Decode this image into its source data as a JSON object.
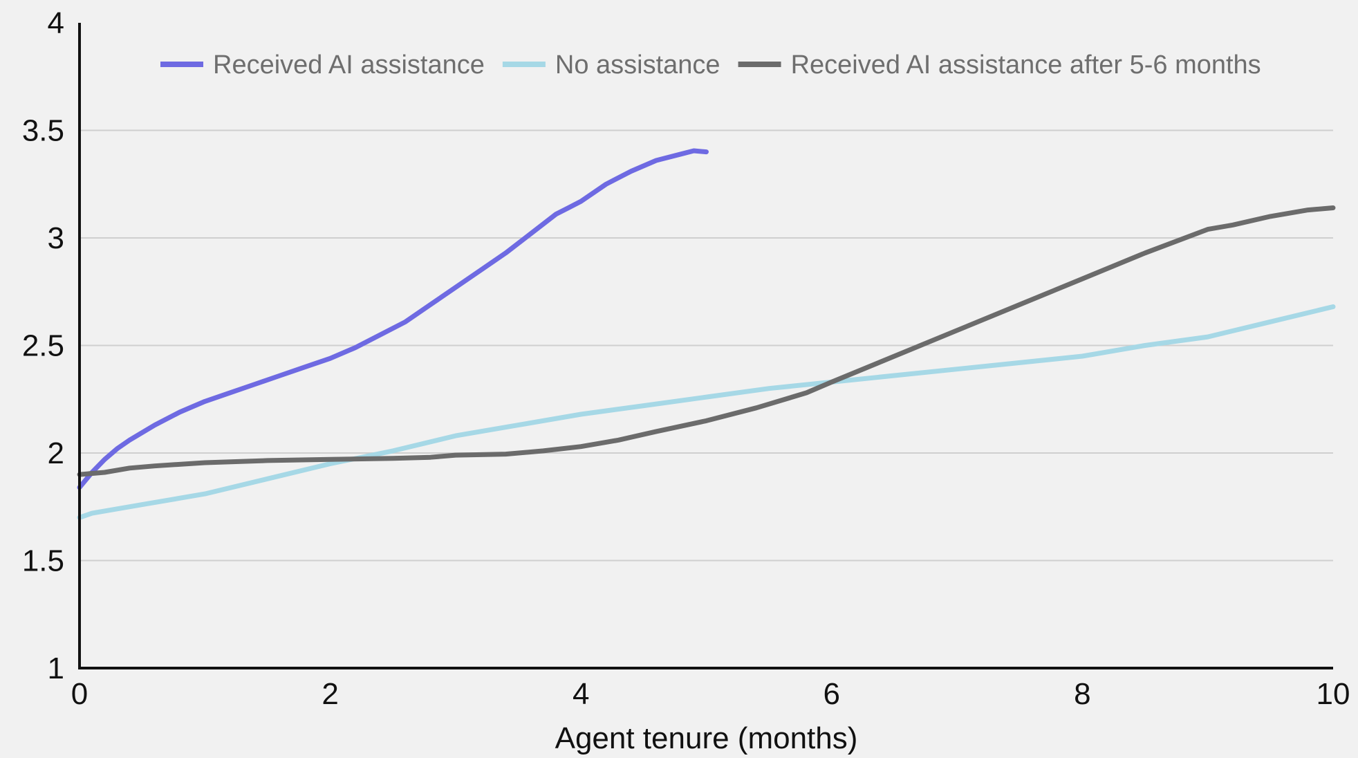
{
  "chart_data": {
    "type": "line",
    "title": "",
    "xlabel": "Agent tenure (months)",
    "ylabel": "",
    "xlim": [
      0,
      10
    ],
    "ylim": [
      1,
      4
    ],
    "x_ticks": [
      0,
      2,
      4,
      6,
      8,
      10
    ],
    "y_ticks": [
      1,
      1.5,
      2,
      2.5,
      3,
      3.5,
      4
    ],
    "x_tick_labels": [
      "0",
      "2",
      "4",
      "6",
      "8",
      "10"
    ],
    "y_tick_labels": [
      "1",
      "1.5",
      "2",
      "2.5",
      "3",
      "3.5",
      "4"
    ],
    "grid": true,
    "legend_position": "top",
    "series": [
      {
        "name": "Received AI assistance",
        "color": "#6e6ae2",
        "x": [
          0,
          0.1,
          0.2,
          0.3,
          0.4,
          0.6,
          0.8,
          1.0,
          1.2,
          1.4,
          1.6,
          1.8,
          2.0,
          2.2,
          2.4,
          2.6,
          2.8,
          3.0,
          3.2,
          3.4,
          3.6,
          3.8,
          3.9,
          4.0,
          4.2,
          4.4,
          4.6,
          4.8,
          4.9,
          5.0
        ],
        "y": [
          1.84,
          1.91,
          1.97,
          2.02,
          2.06,
          2.13,
          2.19,
          2.24,
          2.28,
          2.32,
          2.36,
          2.4,
          2.44,
          2.49,
          2.55,
          2.61,
          2.69,
          2.77,
          2.85,
          2.93,
          3.02,
          3.11,
          3.14,
          3.17,
          3.25,
          3.31,
          3.36,
          3.39,
          3.405,
          3.4
        ]
      },
      {
        "name": "No assistance",
        "color": "#a6d8e6",
        "x": [
          0,
          0.1,
          0.5,
          1.0,
          1.5,
          2.0,
          2.5,
          3.0,
          3.5,
          4.0,
          4.5,
          5.0,
          5.5,
          6.0,
          6.5,
          7.0,
          7.5,
          8.0,
          8.5,
          9.0,
          9.5,
          10.0
        ],
        "y": [
          1.7,
          1.72,
          1.76,
          1.81,
          1.88,
          1.95,
          2.01,
          2.08,
          2.13,
          2.18,
          2.22,
          2.26,
          2.3,
          2.33,
          2.36,
          2.39,
          2.42,
          2.45,
          2.5,
          2.54,
          2.61,
          2.68
        ]
      },
      {
        "name": "Received AI assistance after 5-6 months",
        "color": "#6b6b6b",
        "x": [
          0,
          0.2,
          0.4,
          0.6,
          1.0,
          1.5,
          2.0,
          2.5,
          2.8,
          3.0,
          3.4,
          3.7,
          4.0,
          4.3,
          4.6,
          5.0,
          5.4,
          5.8,
          6.0,
          6.5,
          7.0,
          7.5,
          8.0,
          8.5,
          9.0,
          9.2,
          9.5,
          9.8,
          10.0
        ],
        "y": [
          1.9,
          1.91,
          1.93,
          1.94,
          1.955,
          1.965,
          1.97,
          1.975,
          1.98,
          1.99,
          1.995,
          2.01,
          2.03,
          2.06,
          2.1,
          2.15,
          2.21,
          2.28,
          2.33,
          2.45,
          2.57,
          2.69,
          2.81,
          2.93,
          3.04,
          3.06,
          3.1,
          3.13,
          3.14
        ]
      }
    ]
  }
}
